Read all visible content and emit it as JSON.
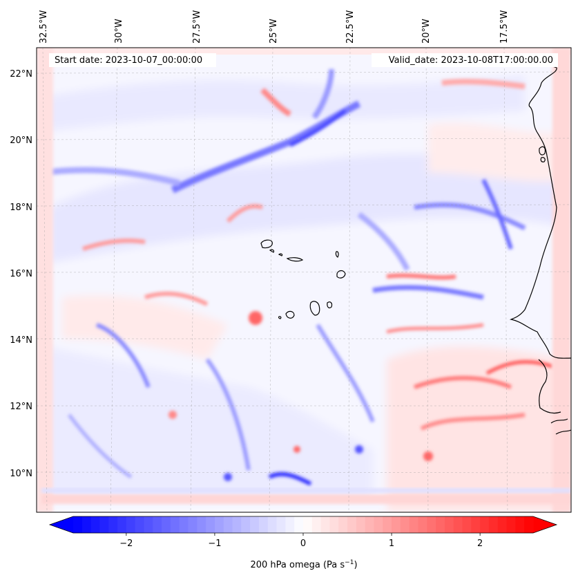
{
  "map": {
    "start_date_label": "Start date: 2023-10-07_00:00:00",
    "valid_date_label": "Valid_date: 2023-10-08T17:00:00.00",
    "lon_ticks": [
      "32.5°W",
      "30°W",
      "27.5°W",
      "25°W",
      "22.5°W",
      "20°W",
      "17.5°W"
    ],
    "lat_ticks": [
      "22°N",
      "20°N",
      "18°N",
      "16°N",
      "14°N",
      "12°N",
      "10°N"
    ],
    "field": "200 hPa omega",
    "colors": {
      "negative": "#0000ff",
      "zero": "#ffffff",
      "positive": "#ff0000",
      "coastline": "#000000"
    }
  },
  "colorbar": {
    "label_text": "200 hPa omega (Pa s",
    "label_exponent": "−1",
    "label_close": ")",
    "min": -2.6,
    "max": 2.6,
    "tick_values": [
      -2,
      -1,
      0,
      1,
      2
    ],
    "tick_labels": [
      "−2",
      "−1",
      "0",
      "1",
      "2"
    ]
  }
}
